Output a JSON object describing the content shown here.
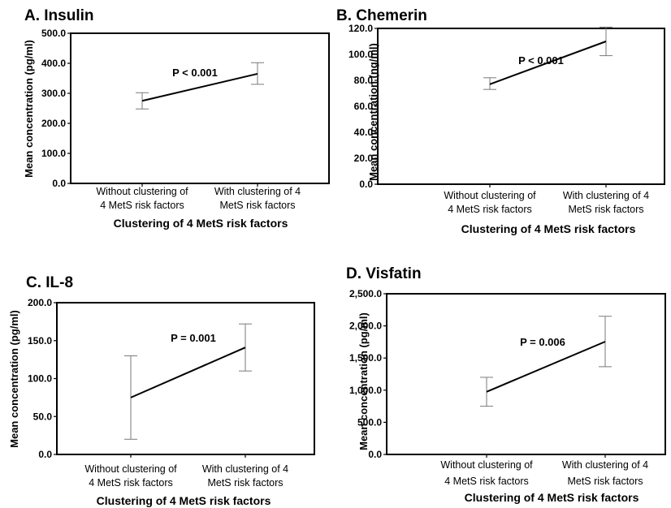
{
  "chart_data": [
    {
      "type": "line",
      "title": "A. Insulin",
      "ylabel": "Mean concentration (pg/ml)",
      "xlabel": "Clustering of 4 MetS risk factors",
      "categories": [
        [
          "Without clustering of",
          "4 MetS risk factors"
        ],
        [
          "With clustering of 4",
          "MetS risk factors"
        ]
      ],
      "values": [
        275,
        365
      ],
      "error_low": [
        248,
        330
      ],
      "error_high": [
        302,
        402
      ],
      "ylim": [
        0,
        500
      ],
      "yticks": [
        "0.0",
        "100.0",
        "200.0",
        "300.0",
        "400.0",
        "500.0"
      ],
      "annotation": "P < 0.001"
    },
    {
      "type": "line",
      "title": "B. Chemerin",
      "ylabel": "Mean concentration (ng/ml)",
      "xlabel": "Clustering of 4 MetS risk factors",
      "categories": [
        [
          "Without clustering of",
          "4 MetS risk factors"
        ],
        [
          "With clustering of 4",
          "MetS risk factors"
        ]
      ],
      "values": [
        77,
        110
      ],
      "error_low": [
        73,
        99
      ],
      "error_high": [
        82,
        121
      ],
      "ylim": [
        0,
        120
      ],
      "yticks": [
        "0.0",
        "20.0",
        "40.0",
        "60.0",
        "80.0",
        "100.0",
        "120.0"
      ],
      "annotation": "P < 0.001"
    },
    {
      "type": "line",
      "title": "C. IL-8",
      "ylabel": "Mean concentration (pg/ml)",
      "xlabel": "Clustering of 4 MetS risk factors",
      "categories": [
        [
          "Without clustering of",
          "4 MetS risk factors"
        ],
        [
          "With clustering of 4",
          "MetS risk factors"
        ]
      ],
      "values": [
        75,
        141
      ],
      "error_low": [
        20,
        110
      ],
      "error_high": [
        130,
        172
      ],
      "ylim": [
        0,
        200
      ],
      "yticks": [
        "0.0",
        "50.0",
        "100.0",
        "150.0",
        "200.0"
      ],
      "annotation": "P = 0.001"
    },
    {
      "type": "line",
      "title": "D. Visfatin",
      "ylabel": "Mean concentration (pg/ml)",
      "xlabel": "Clustering of 4 MetS risk factors",
      "categories": [
        [
          "Without clustering of",
          "4 MetS risk factors"
        ],
        [
          "With clustering of 4",
          "MetS risk factors"
        ]
      ],
      "values": [
        975,
        1755
      ],
      "error_low": [
        750,
        1365
      ],
      "error_high": [
        1200,
        2150
      ],
      "ylim": [
        0,
        2500
      ],
      "yticks": [
        "0.0",
        "500.0",
        "1,000.0",
        "1,500.0",
        "2,000.0",
        "2,500.0"
      ],
      "annotation": "P = 0.006"
    }
  ]
}
